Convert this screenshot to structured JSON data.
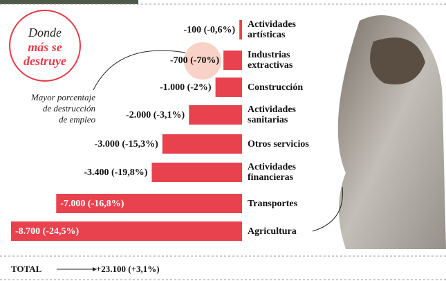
{
  "chart_data": {
    "type": "bar",
    "orientation": "horizontal",
    "categories": [
      "Actividades artísticas",
      "Industrias extractivas",
      "Construcción",
      "Actividades sanitarias",
      "Otros servicios",
      "Actividades financieras",
      "Transportes",
      "Agricultura"
    ],
    "values": [
      -100,
      -700,
      -1000,
      -2000,
      -3000,
      -3400,
      -7000,
      -8700
    ],
    "value_labels": [
      "-100 (-0,6%)",
      "-700 (-70%)",
      "-1.000 (-2%)",
      "-2.000 (-3,1%)",
      "-3.000 (-15,3%)",
      "-3.400 (-19,8%)",
      "-7.000 (-16,8%)",
      "-8.700 (-24,5%)"
    ],
    "color": "#e8424f"
  },
  "callout": {
    "intro": "Donde",
    "highlight": "más se destruye"
  },
  "annotation": [
    "Mayor porcentaje",
    "de destrucción",
    "de empleo"
  ],
  "total": {
    "label": "TOTAL",
    "value": "+23.100 (+3,1%)"
  }
}
